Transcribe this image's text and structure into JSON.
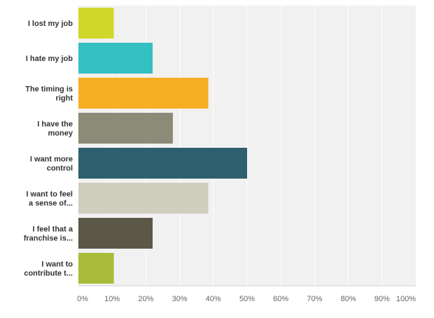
{
  "chart_data": {
    "type": "bar",
    "orientation": "horizontal",
    "categories": [
      [
        "I lost my job"
      ],
      [
        "I hate my job"
      ],
      [
        "The timing is",
        "right"
      ],
      [
        "I have the",
        "money"
      ],
      [
        "I want more",
        "control"
      ],
      [
        "I want to feel",
        "a sense of..."
      ],
      [
        "I feel that a",
        "franchise is..."
      ],
      [
        "I want to",
        "contribute t..."
      ]
    ],
    "values": [
      10.5,
      22,
      38.5,
      28,
      50,
      38.5,
      22,
      10.5
    ],
    "colors": [
      "#cfd82a",
      "#34bfc1",
      "#f8ae22",
      "#8b8b78",
      "#2e5f6e",
      "#cfcebf",
      "#5b5848",
      "#a8bc3a"
    ],
    "xlim": [
      0,
      100
    ],
    "x_ticks": [
      "0%",
      "10%",
      "20%",
      "30%",
      "40%",
      "50%",
      "60%",
      "70%",
      "80%",
      "90%",
      "100%"
    ],
    "grid": true,
    "plot_background": "#f1f1f1",
    "title": "",
    "xlabel": "",
    "ylabel": ""
  }
}
